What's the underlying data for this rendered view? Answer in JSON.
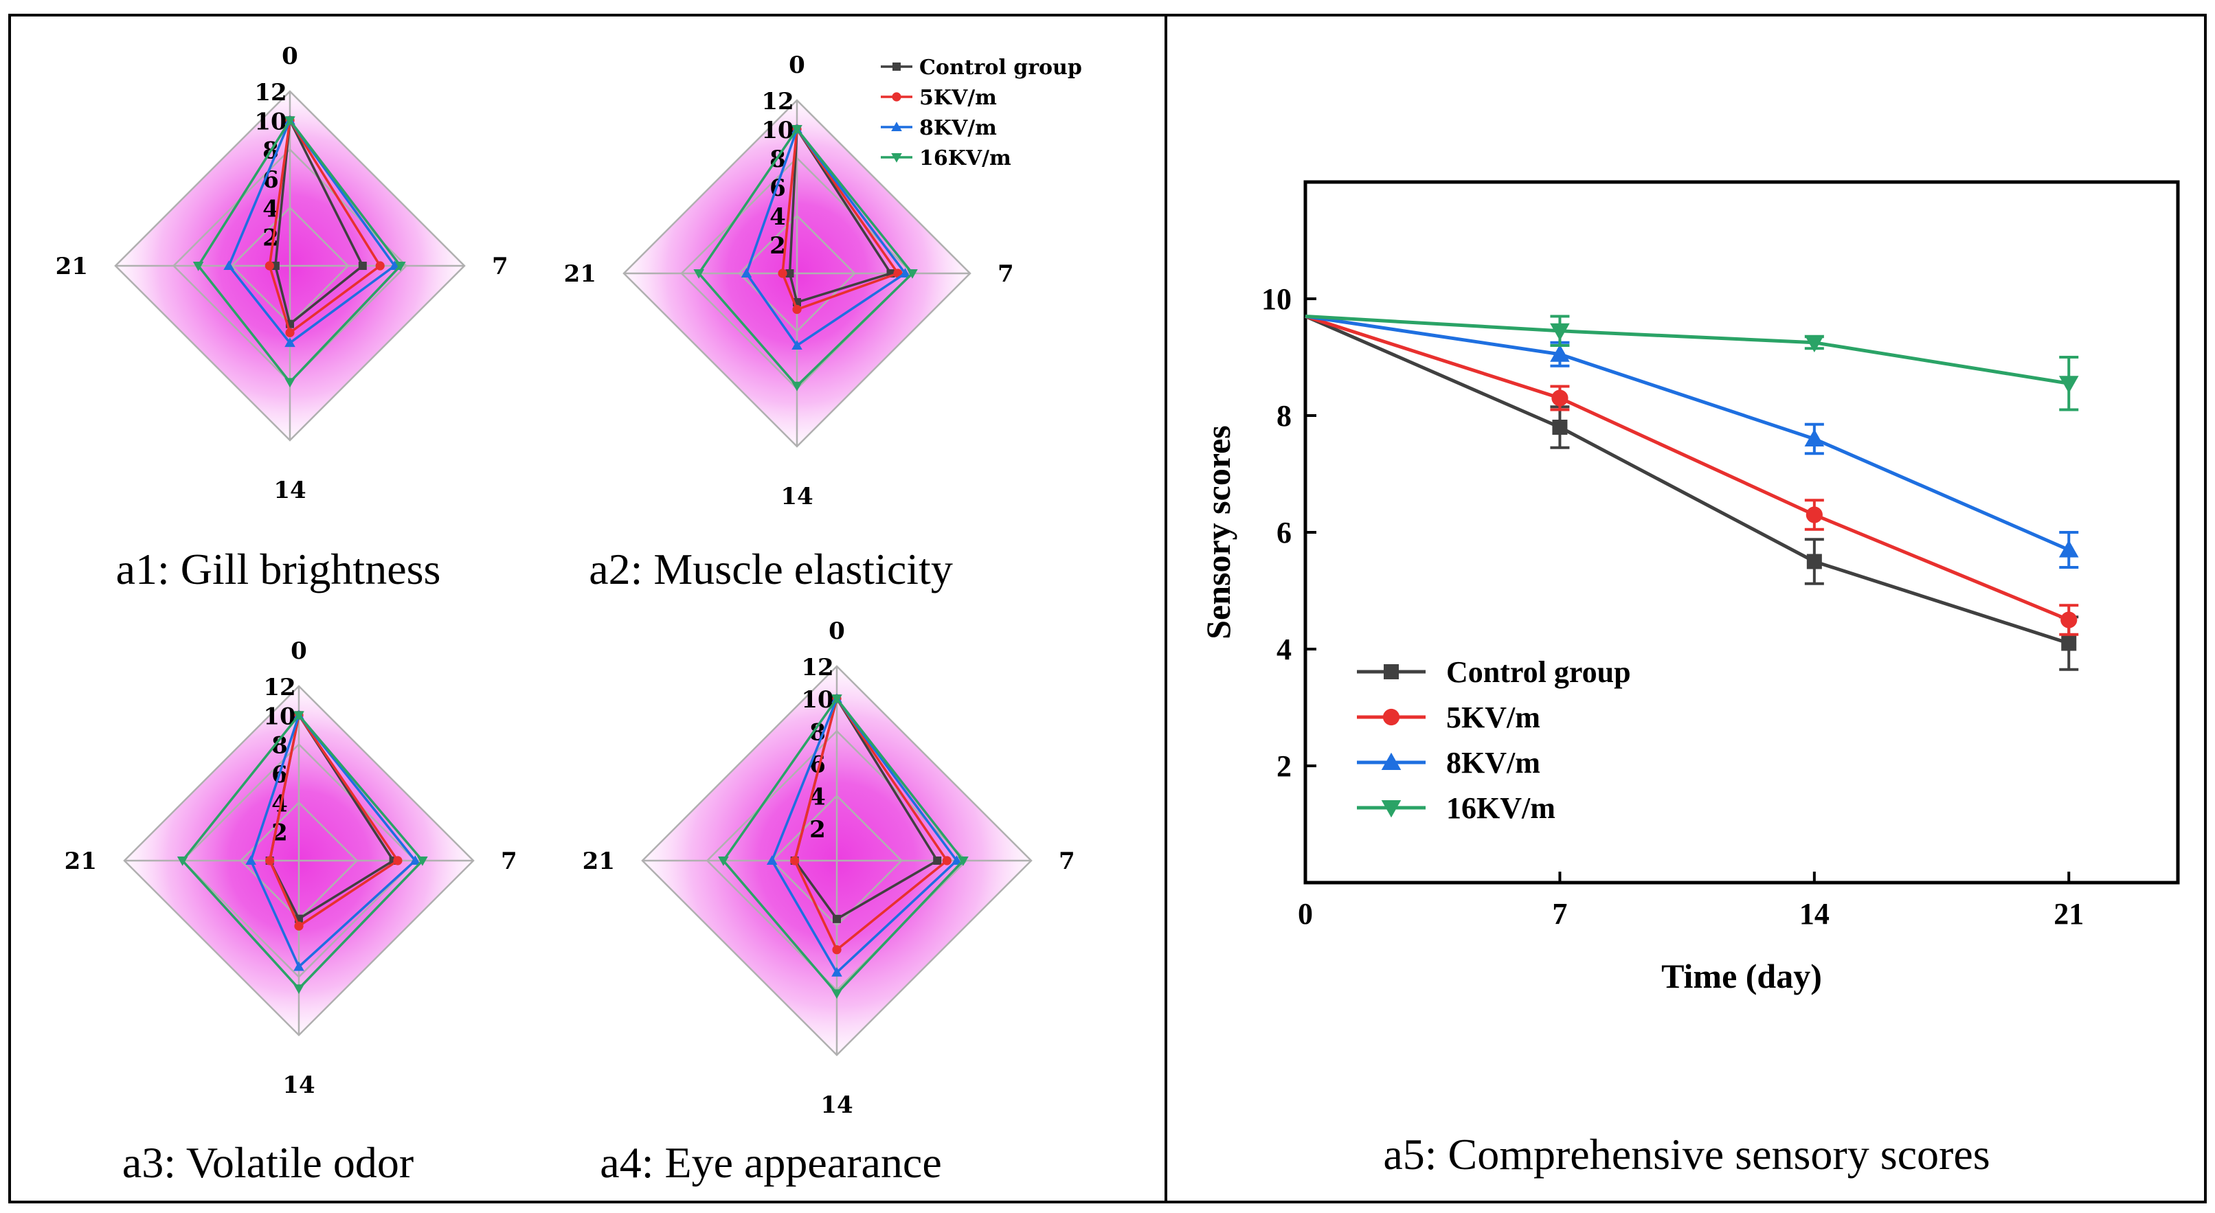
{
  "colors": {
    "control": "#404040",
    "kv5": "#e8302e",
    "kv8": "#1e6fe0",
    "kv16": "#2aa366",
    "frame": "#000000",
    "radar_fill": "#ee3ce0"
  },
  "legend": {
    "labels": [
      "Control group",
      "5KV/m",
      "8KV/m",
      "16KV/m"
    ],
    "markers": [
      "square",
      "circle",
      "triangle-up",
      "triangle-down"
    ]
  },
  "chart_data": [
    {
      "id": "a1",
      "type": "radar",
      "caption": "a1: Gill brightness",
      "axes": [
        "0",
        "7",
        "14",
        "21"
      ],
      "radial_ticks": [
        "2",
        "4",
        "6",
        "8",
        "10",
        "12"
      ],
      "rmax": 12,
      "series": [
        {
          "name": "Control group",
          "values": [
            10,
            5.0,
            4.0,
            1.0
          ]
        },
        {
          "name": "5KV/m",
          "values": [
            10,
            6.2,
            4.6,
            1.4
          ]
        },
        {
          "name": "8KV/m",
          "values": [
            10,
            7.2,
            5.3,
            4.2
          ]
        },
        {
          "name": "16KV/m",
          "values": [
            10,
            7.6,
            8.0,
            6.3
          ]
        }
      ]
    },
    {
      "id": "a2",
      "type": "radar",
      "caption": "a2: Muscle elasticity",
      "axes": [
        "0",
        "7",
        "14",
        "21"
      ],
      "radial_ticks": [
        "2",
        "4",
        "6",
        "8",
        "10",
        "12"
      ],
      "rmax": 12,
      "series": [
        {
          "name": "Control group",
          "values": [
            10,
            6.5,
            2.0,
            0.5
          ]
        },
        {
          "name": "5KV/m",
          "values": [
            10,
            7.0,
            2.5,
            1.0
          ]
        },
        {
          "name": "8KV/m",
          "values": [
            10,
            7.5,
            5.0,
            3.5
          ]
        },
        {
          "name": "16KV/m",
          "values": [
            10,
            8.0,
            7.8,
            6.8
          ]
        }
      ]
    },
    {
      "id": "a3",
      "type": "radar",
      "caption": "a3: Volatile odor",
      "axes": [
        "0",
        "7",
        "14",
        "21"
      ],
      "radial_ticks": [
        "2",
        "4",
        "6",
        "8",
        "10",
        "12"
      ],
      "rmax": 12,
      "series": [
        {
          "name": "Control group",
          "values": [
            10,
            6.5,
            4.0,
            2.0
          ]
        },
        {
          "name": "5KV/m",
          "values": [
            10,
            6.8,
            4.5,
            2.0
          ]
        },
        {
          "name": "8KV/m",
          "values": [
            10,
            8.0,
            7.3,
            3.3
          ]
        },
        {
          "name": "16KV/m",
          "values": [
            10,
            8.5,
            8.8,
            8.0
          ]
        }
      ]
    },
    {
      "id": "a4",
      "type": "radar",
      "caption": "a4: Eye appearance",
      "axes": [
        "0",
        "7",
        "14",
        "21"
      ],
      "radial_ticks": [
        "2",
        "4",
        "6",
        "8",
        "10",
        "12"
      ],
      "rmax": 12,
      "series": [
        {
          "name": "Control group",
          "values": [
            10,
            6.2,
            3.6,
            2.6
          ]
        },
        {
          "name": "5KV/m",
          "values": [
            10,
            6.8,
            5.5,
            2.6
          ]
        },
        {
          "name": "8KV/m",
          "values": [
            10,
            7.4,
            6.9,
            4.0
          ]
        },
        {
          "name": "16KV/m",
          "values": [
            10,
            7.8,
            8.2,
            7.0
          ]
        }
      ]
    },
    {
      "id": "a5",
      "type": "line",
      "caption": "a5: Comprehensive sensory scores",
      "xlabel": "Time (day)",
      "ylabel": "Sensory scores",
      "x": [
        0,
        7,
        14,
        21
      ],
      "xticks": [
        "0",
        "7",
        "14",
        "21"
      ],
      "yticks": [
        "2",
        "4",
        "6",
        "8",
        "10"
      ],
      "xlim": [
        0,
        24
      ],
      "ylim": [
        0,
        12
      ],
      "legend_position": "bottom-left",
      "series": [
        {
          "name": "Control group",
          "values": [
            9.7,
            7.8,
            5.5,
            4.1
          ],
          "errors": [
            0,
            0.35,
            0.38,
            0.45
          ]
        },
        {
          "name": "5KV/m",
          "values": [
            9.7,
            8.3,
            6.3,
            4.5
          ],
          "errors": [
            0,
            0.2,
            0.25,
            0.25
          ]
        },
        {
          "name": "8KV/m",
          "values": [
            9.7,
            9.05,
            7.6,
            5.7
          ],
          "errors": [
            0,
            0.2,
            0.25,
            0.3
          ]
        },
        {
          "name": "16KV/m",
          "values": [
            9.7,
            9.45,
            9.25,
            8.55
          ],
          "errors": [
            0,
            0.25,
            0.1,
            0.45
          ]
        }
      ]
    }
  ]
}
